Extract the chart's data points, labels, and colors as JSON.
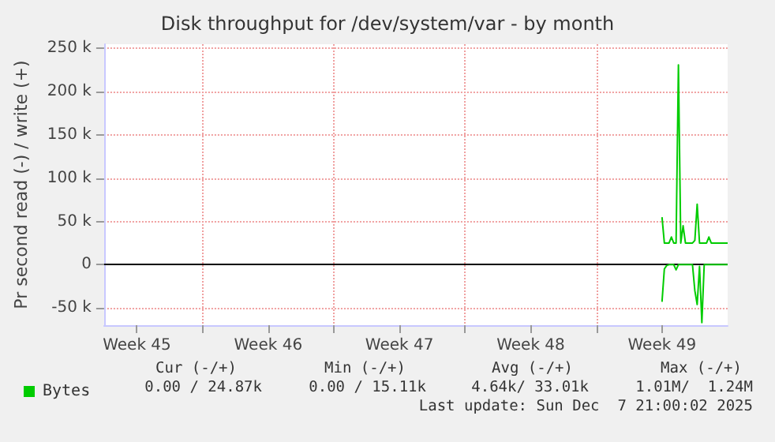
{
  "chart_data": {
    "type": "line",
    "title": "Disk throughput for /dev/system/var - by month",
    "ylabel": "Pr second read (-) / write (+)",
    "categories": [
      null,
      null,
      null,
      null,
      null,
      null,
      null,
      null,
      null,
      null,
      null,
      null,
      null,
      null,
      "Week 45",
      null,
      null,
      null,
      null,
      null,
      null,
      null,
      null,
      null,
      null,
      null,
      null,
      null,
      null,
      null,
      null,
      null,
      null,
      null,
      null,
      null,
      null,
      null,
      null,
      null,
      null,
      null,
      null,
      null,
      null,
      null,
      null,
      null,
      null,
      null,
      null,
      null,
      null,
      null,
      null,
      null,
      null,
      null,
      null,
      null,
      null,
      null,
      null,
      null,
      null,
      null,
      null,
      null,
      null,
      null,
      "Week 46",
      null,
      null,
      null,
      null,
      null,
      null,
      null,
      null,
      null,
      null,
      null,
      null,
      null,
      null,
      null,
      null,
      null,
      null,
      null,
      null,
      null,
      null,
      null,
      null,
      null,
      null,
      null,
      null,
      null,
      null,
      null,
      null,
      null,
      null,
      null,
      null,
      null,
      null,
      null,
      null,
      null,
      null,
      null,
      null,
      null,
      null,
      null,
      null,
      null,
      null,
      null,
      null,
      null,
      null,
      null,
      "Week 47",
      null,
      null,
      null,
      null,
      null,
      null,
      null,
      null,
      null,
      null,
      null,
      null,
      null,
      null,
      null,
      null,
      null,
      null,
      null,
      null,
      null,
      null,
      null,
      null,
      null,
      null,
      null,
      null,
      null,
      null,
      null,
      null,
      null,
      null,
      null,
      null,
      null,
      null,
      null,
      null,
      null,
      null,
      null,
      null,
      null,
      null,
      null,
      null,
      null,
      null,
      null,
      null,
      null,
      null,
      null,
      "Week 48",
      null,
      null,
      null,
      null,
      null,
      null,
      null,
      null,
      null,
      null,
      null,
      null,
      null,
      null,
      null,
      null,
      null,
      null,
      null,
      null,
      null,
      null,
      null,
      null,
      null,
      null,
      null,
      null,
      null,
      null,
      null,
      null,
      null,
      null,
      null,
      null,
      null,
      null,
      null,
      null,
      null,
      null,
      null,
      null,
      null,
      null,
      null,
      null,
      null,
      null,
      null,
      null,
      null,
      null,
      null,
      "Week 49",
      null,
      null,
      null,
      null,
      null,
      null,
      null,
      null,
      null,
      null,
      null,
      null,
      null,
      null,
      null,
      null,
      null,
      null,
      null,
      null,
      null,
      null,
      null,
      null,
      null,
      null,
      null,
      null
    ],
    "ylim": [
      -70000,
      255000
    ],
    "yticks": [
      {
        "value": -50000,
        "label": "-50 k"
      },
      0,
      {
        "value": 50000,
        "label": "50 k"
      },
      {
        "value": 100000,
        "label": "100 k"
      },
      {
        "value": 150000,
        "label": "150 k"
      },
      {
        "value": 200000,
        "label": "200 k"
      },
      {
        "value": 250000,
        "label": "250 k"
      }
    ],
    "grid": true,
    "legend": "bottom left",
    "marker": "none",
    "line_style": "solid",
    "ref_lines": [
      {
        "axis": "y",
        "value": 0,
        "color": "#000000"
      }
    ],
    "series": [
      {
        "name": "Bytes",
        "color": "#00cc00",
        "values": [
          null,
          null,
          null,
          null,
          null,
          null,
          null,
          null,
          null,
          null,
          null,
          null,
          null,
          null,
          null,
          null,
          null,
          null,
          null,
          null,
          null,
          null,
          null,
          null,
          null,
          null,
          null,
          null,
          null,
          null,
          null,
          null,
          null,
          null,
          null,
          null,
          null,
          null,
          null,
          null,
          null,
          null,
          null,
          null,
          null,
          null,
          null,
          null,
          null,
          null,
          null,
          null,
          null,
          null,
          null,
          null,
          null,
          null,
          null,
          null,
          null,
          null,
          null,
          null,
          null,
          null,
          null,
          null,
          null,
          null,
          null,
          null,
          null,
          null,
          null,
          null,
          null,
          null,
          null,
          null,
          null,
          null,
          null,
          null,
          null,
          null,
          null,
          null,
          null,
          null,
          null,
          null,
          null,
          null,
          null,
          null,
          null,
          null,
          null,
          null,
          null,
          null,
          null,
          null,
          null,
          null,
          null,
          null,
          null,
          null,
          null,
          null,
          null,
          null,
          null,
          null,
          null,
          null,
          null,
          null,
          null,
          null,
          null,
          null,
          null,
          null,
          null,
          null,
          null,
          null,
          null,
          null,
          null,
          null,
          null,
          null,
          null,
          null,
          null,
          null,
          null,
          null,
          null,
          null,
          null,
          null,
          null,
          null,
          null,
          null,
          null,
          null,
          null,
          null,
          null,
          null,
          null,
          null,
          null,
          null,
          null,
          null,
          null,
          null,
          null,
          null,
          null,
          null,
          null,
          null,
          null,
          null,
          null,
          null,
          null,
          null,
          null,
          null,
          null,
          null,
          null,
          null,
          null,
          null,
          null,
          null,
          null,
          null,
          null,
          null,
          null,
          null,
          null,
          null,
          null,
          null,
          null,
          null,
          null,
          null,
          null,
          null,
          null,
          null,
          null,
          null,
          null,
          null,
          null,
          null,
          null,
          null,
          null,
          null,
          null,
          null,
          null,
          null,
          null,
          null,
          null,
          null,
          null,
          null,
          null,
          null,
          null,
          null,
          null,
          null,
          null,
          null,
          null,
          null,
          null,
          null,
          null,
          null,
          55000,
          25000,
          25000,
          25000,
          32000,
          25000,
          25000,
          231000,
          25000,
          45000,
          25000,
          25000,
          25000,
          25000,
          28000,
          70000,
          25000,
          25000,
          25000,
          25000,
          32000,
          25000,
          25000,
          25000,
          25000,
          25000,
          25000,
          25000,
          25000
        ]
      },
      {
        "color": "#00cc00",
        "values": [
          null,
          null,
          null,
          null,
          null,
          null,
          null,
          null,
          null,
          null,
          null,
          null,
          null,
          null,
          null,
          null,
          null,
          null,
          null,
          null,
          null,
          null,
          null,
          null,
          null,
          null,
          null,
          null,
          null,
          null,
          null,
          null,
          null,
          null,
          null,
          null,
          null,
          null,
          null,
          null,
          null,
          null,
          null,
          null,
          null,
          null,
          null,
          null,
          null,
          null,
          null,
          null,
          null,
          null,
          null,
          null,
          null,
          null,
          null,
          null,
          null,
          null,
          null,
          null,
          null,
          null,
          null,
          null,
          null,
          null,
          null,
          null,
          null,
          null,
          null,
          null,
          null,
          null,
          null,
          null,
          null,
          null,
          null,
          null,
          null,
          null,
          null,
          null,
          null,
          null,
          null,
          null,
          null,
          null,
          null,
          null,
          null,
          null,
          null,
          null,
          null,
          null,
          null,
          null,
          null,
          null,
          null,
          null,
          null,
          null,
          null,
          null,
          null,
          null,
          null,
          null,
          null,
          null,
          null,
          null,
          null,
          null,
          null,
          null,
          null,
          null,
          null,
          null,
          null,
          null,
          null,
          null,
          null,
          null,
          null,
          null,
          null,
          null,
          null,
          null,
          null,
          null,
          null,
          null,
          null,
          null,
          null,
          null,
          null,
          null,
          null,
          null,
          null,
          null,
          null,
          null,
          null,
          null,
          null,
          null,
          null,
          null,
          null,
          null,
          null,
          null,
          null,
          null,
          null,
          null,
          null,
          null,
          null,
          null,
          null,
          null,
          null,
          null,
          null,
          null,
          null,
          null,
          null,
          null,
          null,
          null,
          null,
          null,
          null,
          null,
          null,
          null,
          null,
          null,
          null,
          null,
          null,
          null,
          null,
          null,
          null,
          null,
          null,
          null,
          null,
          null,
          null,
          null,
          null,
          null,
          null,
          null,
          null,
          null,
          null,
          null,
          null,
          null,
          null,
          null,
          null,
          null,
          null,
          null,
          null,
          null,
          null,
          null,
          null,
          null,
          null,
          null,
          null,
          null,
          null,
          null,
          null,
          null,
          -43000,
          -5000,
          -1000,
          0,
          0,
          0,
          -6000,
          0,
          0,
          0,
          0,
          0,
          0,
          0,
          -30000,
          -46000,
          -2000,
          -67000,
          0,
          0,
          0,
          0,
          0,
          0,
          0,
          0,
          0,
          0,
          0
        ]
      }
    ],
    "annotations": [
      "Cur (-/+)",
      "Min (-/+)",
      "Avg (-/+)",
      "Max (-/+)",
      "0.00 / 24.87k",
      "0.00 / 15.11k",
      "4.64k/ 33.01k",
      "1.01M/  1.24M",
      "Last update: Sun Dec  7 21:00:02 2025"
    ]
  }
}
